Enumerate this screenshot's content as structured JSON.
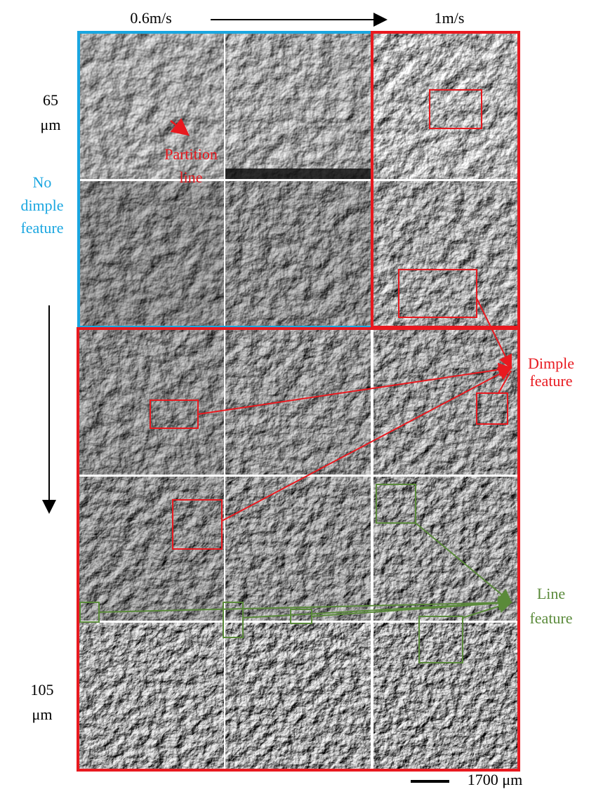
{
  "header": {
    "speed_low": "0.6m/s",
    "speed_high": "1m/s"
  },
  "side_labels": {
    "top": [
      "65",
      "μm"
    ],
    "bottom": [
      "105",
      "μm"
    ]
  },
  "annotations": {
    "no_dimple": [
      "No",
      "dimple",
      "feature"
    ],
    "partition": [
      "Partition",
      "line"
    ],
    "dimple": [
      "Dimple",
      "feature"
    ],
    "line": [
      "Line",
      "feature"
    ]
  },
  "scale_bar": "1700 μm"
}
